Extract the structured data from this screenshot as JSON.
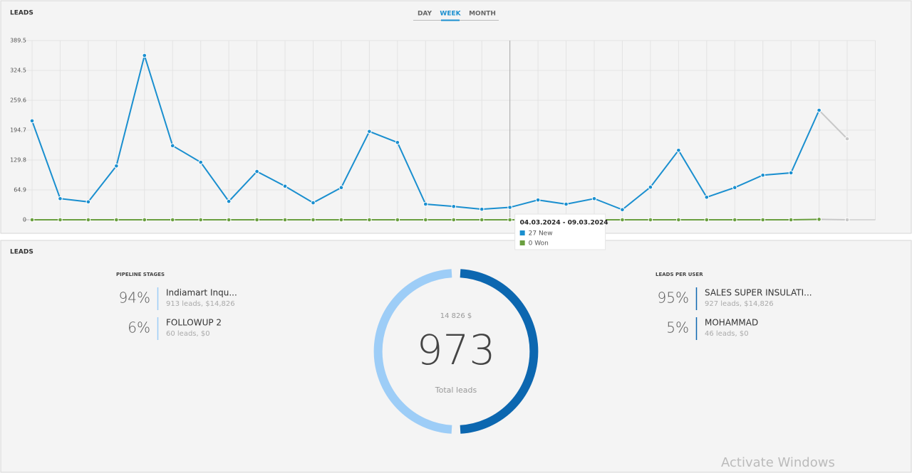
{
  "tabs": {
    "items": [
      "DAY",
      "WEEK",
      "MONTH"
    ],
    "active": 1
  },
  "chart_data": {
    "type": "line",
    "title": "LEADS",
    "categories": [
      null,
      null,
      null,
      null,
      null,
      null,
      null,
      null,
      null,
      null,
      null,
      null,
      null,
      null,
      null,
      null,
      null,
      null,
      null,
      null,
      null,
      null,
      null,
      null,
      null,
      null,
      null,
      null,
      null,
      null
    ],
    "series": [
      {
        "name": "New",
        "color": "#1a8fcf",
        "values": [
          215,
          46,
          39,
          117,
          357,
          161,
          125,
          40,
          105,
          73,
          37,
          70,
          192,
          168,
          34,
          29,
          23,
          27,
          43,
          34,
          46,
          22,
          71,
          151,
          49,
          70,
          97,
          102,
          238,
          176
        ]
      },
      {
        "name": "Won",
        "color": "#6a9f3f",
        "values": [
          0,
          0,
          0,
          0,
          0,
          0,
          0,
          0,
          0,
          0,
          0,
          0,
          0,
          0,
          0,
          0,
          0,
          0,
          0,
          0,
          0,
          0,
          0,
          0,
          0,
          0,
          0,
          0,
          1,
          0
        ]
      }
    ],
    "incomplete_color": "#c8c8c8",
    "ylim": [
      0,
      389.5
    ],
    "yticks": [
      0,
      64.9,
      129.8,
      194.7,
      259.6,
      324.5,
      389.5
    ],
    "grid": true,
    "cursor_index": 17,
    "tooltip": {
      "title": "04.03.2024 - 09.03.2024",
      "items": [
        "27 New",
        "0 Won"
      ]
    }
  },
  "summary": {
    "title": "LEADS",
    "pipeline": {
      "header": "PIPELINE STAGES",
      "rows": [
        {
          "percent": "94%",
          "name": "Indiamart Inqu...",
          "detail": "913 leads, $14,826"
        },
        {
          "percent": "6%",
          "name": "FOLLOWUP 2",
          "detail": "60 leads, $0"
        }
      ]
    },
    "donut": {
      "amount": "14 826 $",
      "total": "973",
      "label": "Total leads"
    },
    "per_user": {
      "header": "LEADS PER USER",
      "rows": [
        {
          "percent": "95%",
          "name": "SALES SUPER INSULATI...",
          "detail": "927 leads, $14,826"
        },
        {
          "percent": "5%",
          "name": "MOHAMMAD",
          "detail": "46 leads, $0"
        }
      ]
    }
  },
  "watermark": "Activate Windows"
}
